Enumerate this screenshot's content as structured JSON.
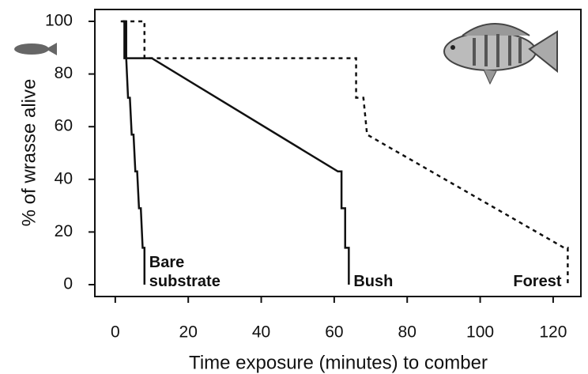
{
  "chart_data": {
    "type": "line",
    "xlabel": "Time exposure (minutes) to comber",
    "ylabel": "% of wrasse alive",
    "xlim": [
      -5.6,
      127.6
    ],
    "xticks": [
      0,
      20,
      40,
      60,
      80,
      100,
      120
    ],
    "ylim": [
      -4.5,
      104.5
    ],
    "yticks": [
      0,
      20,
      40,
      60,
      80,
      100
    ],
    "series": [
      {
        "name": "Bare substrate",
        "color": "#111111",
        "linestyle": "solid",
        "x": [
          1.5,
          2.5,
          2.5,
          3,
          3.5,
          4,
          4.5,
          5,
          5.5,
          6,
          6.5,
          7,
          7.5,
          8,
          8
        ],
        "values": [
          100,
          100,
          86,
          86,
          71,
          71,
          57,
          57,
          43,
          43,
          29,
          29,
          14,
          14,
          0
        ]
      },
      {
        "name": "Bush",
        "color": "#111111",
        "linestyle": "solid",
        "x": [
          2,
          3,
          3,
          10,
          61,
          62,
          62,
          63,
          63,
          64,
          64
        ],
        "values": [
          100,
          100,
          86,
          86,
          43,
          43,
          29,
          29,
          14,
          14,
          0
        ]
      },
      {
        "name": "Forest",
        "color": "#111111",
        "linestyle": "dotted",
        "x": [
          2,
          8,
          8,
          66,
          66,
          68,
          69,
          123,
          124,
          124
        ],
        "values": [
          100,
          100,
          86,
          86,
          71,
          71,
          57,
          14,
          14,
          0
        ]
      }
    ]
  }
}
